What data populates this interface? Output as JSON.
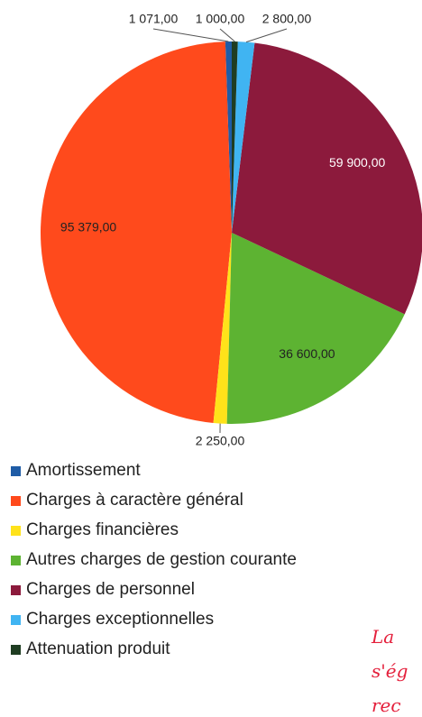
{
  "chart_data": {
    "type": "pie",
    "categories": [
      "Amortissement",
      "Charges à caractère général",
      "Charges financières",
      "Autres charges de gestion courante",
      "Charges de personnel",
      "Charges exceptionnelles",
      "Attenuation produit"
    ],
    "values": [
      1071,
      95379,
      2250,
      36600,
      59900,
      2800,
      1000
    ],
    "value_labels": [
      "1 071,00",
      "95 379,00",
      "2 250,00",
      "36 600,00",
      "59 900,00",
      "2 800,00",
      "1 000,00"
    ],
    "colors": [
      "#1f5ca6",
      "#ff4a1c",
      "#ffe21a",
      "#5db332",
      "#8c1a3c",
      "#40b4f2",
      "#1f3d22"
    ],
    "direction": "counterclockwise",
    "legend": "bottom"
  },
  "annotations": [
    "La",
    "s'ég",
    "rec"
  ]
}
